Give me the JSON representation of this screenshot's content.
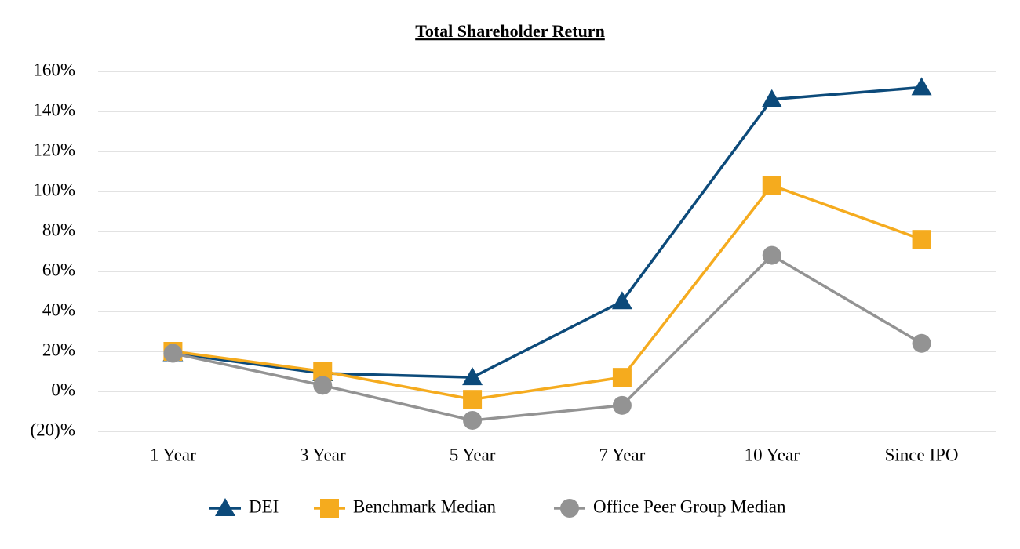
{
  "chart_data": {
    "type": "line",
    "title": "Total Shareholder Return",
    "categories": [
      "1 Year",
      "3 Year",
      "5 Year",
      "7 Year",
      "10 Year",
      "Since IPO"
    ],
    "series": [
      {
        "name": "DEI",
        "color": "#0c4a7a",
        "marker": "triangle",
        "values": [
          19,
          9,
          7,
          45,
          146,
          152
        ]
      },
      {
        "name": "Benchmark Median",
        "color": "#f5ab1e",
        "marker": "square",
        "values": [
          20,
          10,
          -4,
          7,
          103,
          76
        ]
      },
      {
        "name": "Office Peer Group Median",
        "color": "#939393",
        "marker": "circle",
        "values": [
          19,
          3,
          -14.5,
          -7,
          68,
          24
        ]
      }
    ],
    "ylim": [
      -20,
      160
    ],
    "yticks": [
      {
        "value": -20,
        "label": "(20)%"
      },
      {
        "value": 0,
        "label": "0%"
      },
      {
        "value": 20,
        "label": "20%"
      },
      {
        "value": 40,
        "label": "40%"
      },
      {
        "value": 60,
        "label": "60%"
      },
      {
        "value": 80,
        "label": "80%"
      },
      {
        "value": 100,
        "label": "100%"
      },
      {
        "value": 120,
        "label": "120%"
      },
      {
        "value": 140,
        "label": "140%"
      },
      {
        "value": 160,
        "label": "160%"
      }
    ],
    "grid": true,
    "legend": "bottom"
  }
}
